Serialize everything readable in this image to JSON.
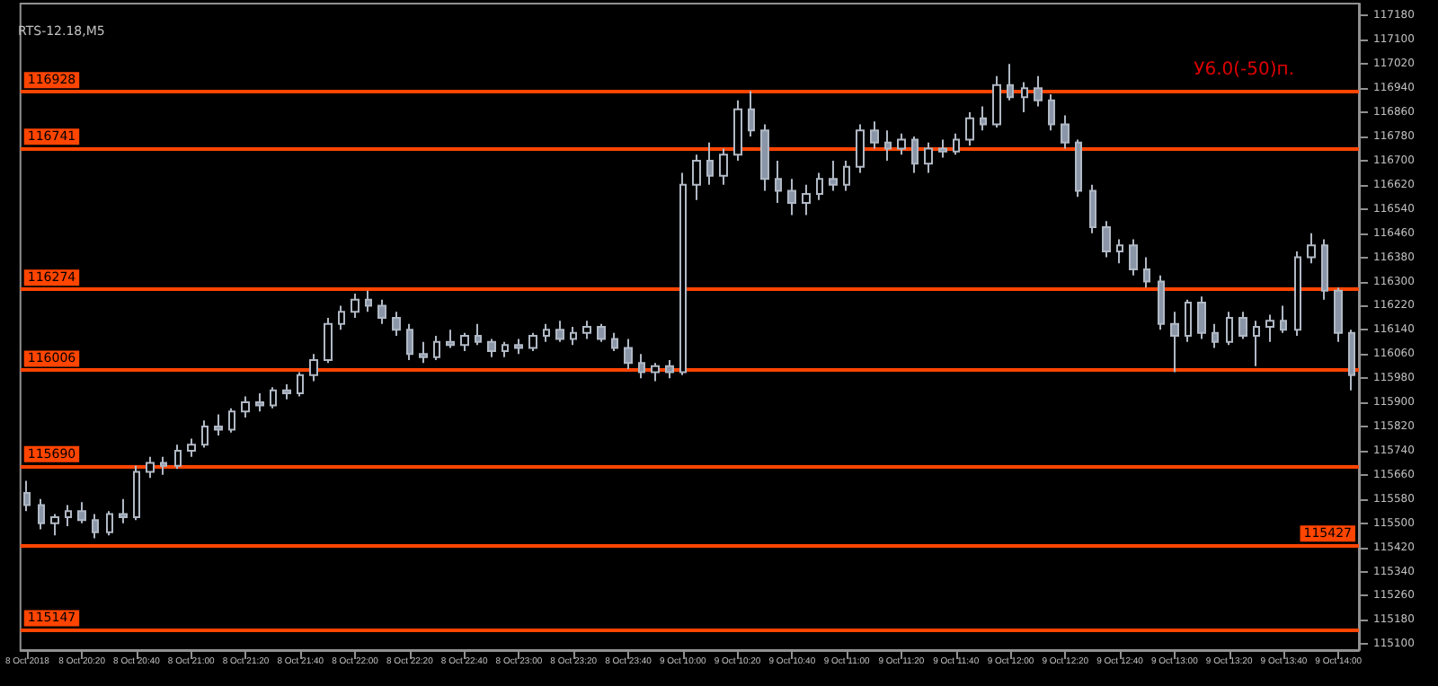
{
  "chart_data": {
    "type": "candlestick",
    "title": "RTS-12.18,M5",
    "annotations": [
      "У6.0(-50)п."
    ],
    "categories": [
      "8 Oct 2018",
      null,
      null,
      null,
      "8 Oct 20:20",
      null,
      null,
      null,
      "8 Oct 20:40",
      null,
      null,
      null,
      "8 Oct 21:00",
      null,
      null,
      null,
      "8 Oct 21:20",
      null,
      null,
      null,
      "8 Oct 21:40",
      null,
      null,
      null,
      "8 Oct 22:00",
      null,
      null,
      null,
      "8 Oct 22:20",
      null,
      null,
      null,
      "8 Oct 22:40",
      null,
      null,
      null,
      "8 Oct 23:00",
      null,
      null,
      null,
      "8 Oct 23:20",
      null,
      null,
      null,
      "8 Oct 23:40",
      null,
      null,
      null,
      "9 Oct 10:00",
      null,
      null,
      null,
      "9 Oct 10:20",
      null,
      null,
      null,
      "9 Oct 10:40",
      null,
      null,
      null,
      "9 Oct 11:00",
      null,
      null,
      null,
      "9 Oct 11:20",
      null,
      null,
      null,
      "9 Oct 11:40",
      null,
      null,
      null,
      "9 Oct 12:00",
      null,
      null,
      null,
      "9 Oct 12:20",
      null,
      null,
      null,
      "9 Oct 12:40",
      null,
      null,
      null,
      "9 Oct 13:00",
      null,
      null,
      null,
      "9 Oct 13:20",
      null,
      null,
      null,
      "9 Oct 13:40",
      null,
      null,
      null,
      "9 Oct 14:00",
      null
    ],
    "ohlc": [
      [
        115600,
        115640,
        115540,
        115560
      ],
      [
        115560,
        115580,
        115480,
        115500
      ],
      [
        115500,
        115530,
        115460,
        115520
      ],
      [
        115520,
        115560,
        115490,
        115540
      ],
      [
        115540,
        115570,
        115500,
        115510
      ],
      [
        115510,
        115530,
        115450,
        115470
      ],
      [
        115470,
        115540,
        115460,
        115530
      ],
      [
        115530,
        115580,
        115500,
        115520
      ],
      [
        115520,
        115690,
        115510,
        115670
      ],
      [
        115670,
        115720,
        115650,
        115700
      ],
      [
        115700,
        115720,
        115660,
        115690
      ],
      [
        115690,
        115760,
        115680,
        115740
      ],
      [
        115740,
        115780,
        115720,
        115760
      ],
      [
        115760,
        115840,
        115750,
        115820
      ],
      [
        115820,
        115860,
        115790,
        115810
      ],
      [
        115810,
        115880,
        115800,
        115870
      ],
      [
        115870,
        115920,
        115850,
        115900
      ],
      [
        115900,
        115930,
        115870,
        115890
      ],
      [
        115890,
        115950,
        115880,
        115940
      ],
      [
        115940,
        115960,
        115910,
        115930
      ],
      [
        115930,
        116000,
        115920,
        115990
      ],
      [
        115990,
        116060,
        115970,
        116040
      ],
      [
        116040,
        116180,
        116030,
        116160
      ],
      [
        116160,
        116220,
        116140,
        116200
      ],
      [
        116200,
        116260,
        116180,
        116240
      ],
      [
        116240,
        116270,
        116200,
        116220
      ],
      [
        116220,
        116240,
        116160,
        116180
      ],
      [
        116180,
        116200,
        116120,
        116140
      ],
      [
        116140,
        116160,
        116040,
        116060
      ],
      [
        116060,
        116100,
        116030,
        116050
      ],
      [
        116050,
        116120,
        116040,
        116100
      ],
      [
        116100,
        116140,
        116080,
        116090
      ],
      [
        116090,
        116130,
        116070,
        116120
      ],
      [
        116120,
        116160,
        116090,
        116100
      ],
      [
        116100,
        116110,
        116050,
        116070
      ],
      [
        116070,
        116100,
        116050,
        116090
      ],
      [
        116090,
        116110,
        116060,
        116080
      ],
      [
        116080,
        116130,
        116070,
        116120
      ],
      [
        116120,
        116160,
        116100,
        116140
      ],
      [
        116140,
        116170,
        116100,
        116110
      ],
      [
        116110,
        116150,
        116090,
        116130
      ],
      [
        116130,
        116170,
        116110,
        116150
      ],
      [
        116150,
        116160,
        116100,
        116110
      ],
      [
        116110,
        116130,
        116070,
        116080
      ],
      [
        116080,
        116110,
        116010,
        116030
      ],
      [
        116030,
        116060,
        115980,
        116000
      ],
      [
        116000,
        116030,
        115970,
        116020
      ],
      [
        116020,
        116040,
        115980,
        116000
      ],
      [
        116000,
        116660,
        115990,
        116620
      ],
      [
        116620,
        116720,
        116570,
        116700
      ],
      [
        116700,
        116760,
        116620,
        116650
      ],
      [
        116650,
        116740,
        116620,
        116720
      ],
      [
        116720,
        116900,
        116700,
        116870
      ],
      [
        116870,
        116930,
        116780,
        116800
      ],
      [
        116800,
        116820,
        116600,
        116640
      ],
      [
        116640,
        116700,
        116560,
        116600
      ],
      [
        116600,
        116640,
        116520,
        116560
      ],
      [
        116560,
        116620,
        116520,
        116590
      ],
      [
        116590,
        116660,
        116570,
        116640
      ],
      [
        116640,
        116700,
        116600,
        116620
      ],
      [
        116620,
        116700,
        116600,
        116680
      ],
      [
        116680,
        116820,
        116660,
        116800
      ],
      [
        116800,
        116830,
        116740,
        116760
      ],
      [
        116760,
        116800,
        116700,
        116740
      ],
      [
        116740,
        116790,
        116720,
        116770
      ],
      [
        116770,
        116780,
        116660,
        116690
      ],
      [
        116690,
        116760,
        116660,
        116740
      ],
      [
        116740,
        116770,
        116710,
        116730
      ],
      [
        116730,
        116790,
        116720,
        116770
      ],
      [
        116770,
        116860,
        116750,
        116840
      ],
      [
        116840,
        116880,
        116800,
        116820
      ],
      [
        116820,
        116980,
        116810,
        116950
      ],
      [
        116950,
        117020,
        116900,
        116910
      ],
      [
        116910,
        116960,
        116860,
        116940
      ],
      [
        116940,
        116980,
        116880,
        116900
      ],
      [
        116900,
        116920,
        116800,
        116820
      ],
      [
        116820,
        116850,
        116740,
        116760
      ],
      [
        116760,
        116770,
        116580,
        116600
      ],
      [
        116600,
        116620,
        116460,
        116480
      ],
      [
        116480,
        116500,
        116380,
        116400
      ],
      [
        116400,
        116440,
        116360,
        116420
      ],
      [
        116420,
        116440,
        116320,
        116340
      ],
      [
        116340,
        116380,
        116280,
        116300
      ],
      [
        116300,
        116320,
        116140,
        116160
      ],
      [
        116160,
        116200,
        116000,
        116120
      ],
      [
        116120,
        116240,
        116100,
        116230
      ],
      [
        116230,
        116250,
        116110,
        116130
      ],
      [
        116130,
        116160,
        116080,
        116100
      ],
      [
        116100,
        116200,
        116090,
        116180
      ],
      [
        116180,
        116200,
        116110,
        116120
      ],
      [
        116120,
        116170,
        116020,
        116150
      ],
      [
        116150,
        116190,
        116100,
        116170
      ],
      [
        116170,
        116220,
        116130,
        116140
      ],
      [
        116140,
        116400,
        116120,
        116380
      ],
      [
        116380,
        116460,
        116360,
        116420
      ],
      [
        116420,
        116440,
        116240,
        116270
      ],
      [
        116270,
        116280,
        116100,
        116130
      ],
      [
        116130,
        116140,
        115940,
        115990
      ]
    ],
    "ylim": [
      115080,
      117220
    ],
    "yticks": [
      115100,
      115180,
      115260,
      115340,
      115420,
      115500,
      115580,
      115660,
      115740,
      115820,
      115900,
      115980,
      116060,
      116140,
      116220,
      116300,
      116380,
      116460,
      116540,
      116620,
      116700,
      116780,
      116860,
      116940,
      117020,
      117100,
      117180
    ],
    "ref_lines": [
      {
        "axis": "y",
        "value": 116928,
        "label": "116928",
        "color": "#ff4500"
      },
      {
        "axis": "y",
        "value": 116741,
        "label": "116741",
        "color": "#ff4500"
      },
      {
        "axis": "y",
        "value": 116274,
        "label": "116274",
        "color": "#ff4500"
      },
      {
        "axis": "y",
        "value": 116006,
        "label": "116006",
        "color": "#ff4500"
      },
      {
        "axis": "y",
        "value": 115690,
        "label": "115690",
        "color": "#ff4500"
      },
      {
        "axis": "y",
        "value": 115427,
        "label": "115427",
        "color": "#ff4500"
      },
      {
        "axis": "y",
        "value": 115147,
        "label": "115147",
        "color": "#ff4500"
      }
    ],
    "grid": false
  }
}
